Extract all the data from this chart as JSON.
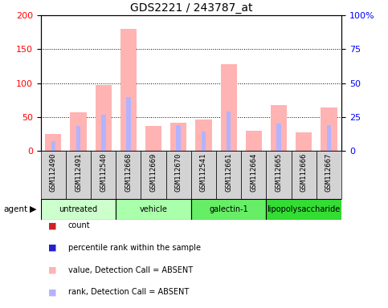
{
  "title": "GDS2221 / 243787_at",
  "samples": [
    "GSM112490",
    "GSM112491",
    "GSM112540",
    "GSM112668",
    "GSM112669",
    "GSM112670",
    "GSM112541",
    "GSM112661",
    "GSM112664",
    "GSM112665",
    "GSM112666",
    "GSM112667"
  ],
  "groups": [
    {
      "label": "untreated",
      "indices": [
        0,
        1,
        2
      ],
      "color": "#ccffcc"
    },
    {
      "label": "vehicle",
      "indices": [
        3,
        4,
        5
      ],
      "color": "#aaffaa"
    },
    {
      "label": "galectin-1",
      "indices": [
        6,
        7,
        8
      ],
      "color": "#66ee66"
    },
    {
      "label": "lipopolysaccharide",
      "indices": [
        9,
        10,
        11
      ],
      "color": "#33dd33"
    }
  ],
  "pink_bars": [
    25,
    57,
    97,
    180,
    37,
    42,
    46,
    128,
    30,
    68,
    27,
    64
  ],
  "blue_bars": [
    14,
    37,
    54,
    79,
    0,
    38,
    29,
    58,
    0,
    41,
    0,
    38
  ],
  "left_ylim": [
    0,
    200
  ],
  "right_ylim": [
    0,
    100
  ],
  "left_yticks": [
    0,
    50,
    100,
    150,
    200
  ],
  "right_yticks": [
    0,
    25,
    50,
    75,
    100
  ],
  "right_yticklabels": [
    "0",
    "25",
    "50",
    "75",
    "100%"
  ],
  "pink_color": "#ffb3b3",
  "blue_color": "#b3b3ff",
  "count_color": "#cc2222",
  "rank_color": "#2222cc",
  "legend_labels": [
    "count",
    "percentile rank within the sample",
    "value, Detection Call = ABSENT",
    "rank, Detection Call = ABSENT"
  ]
}
